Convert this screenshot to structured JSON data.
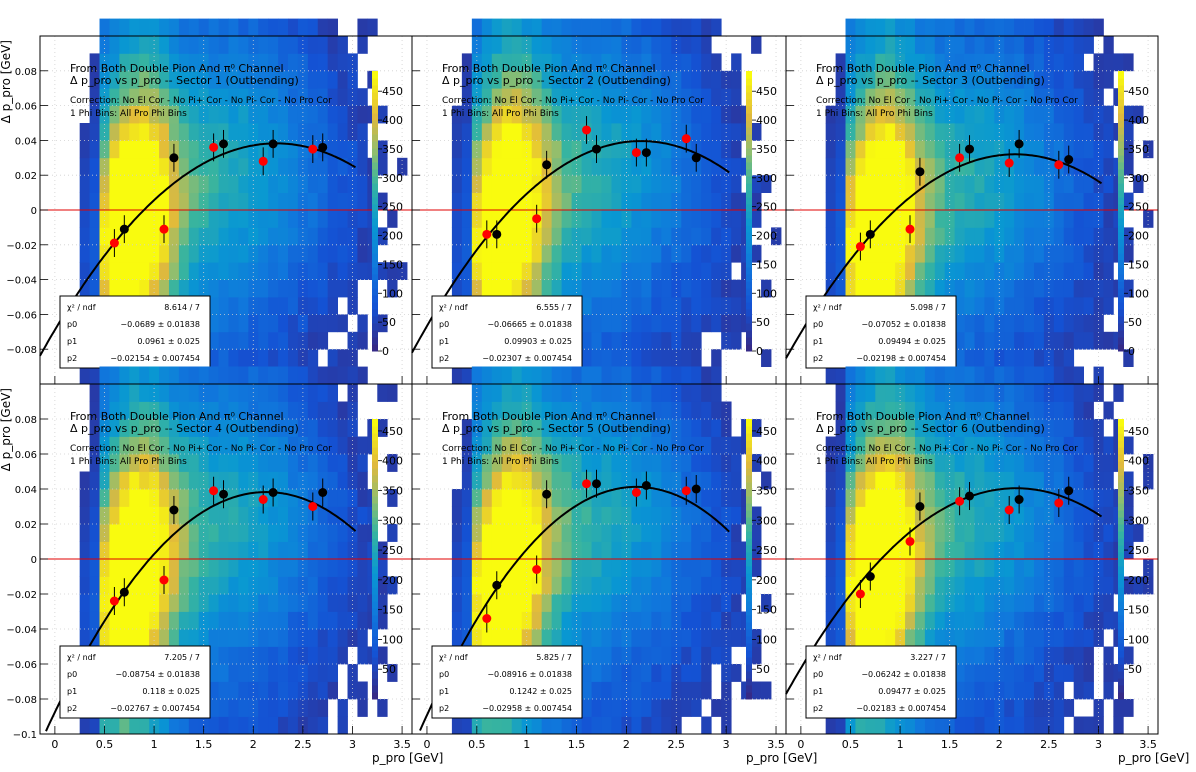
{
  "chart_data": [
    {
      "type": "scatter",
      "title_lines": [
        "From Both Double Pion And π⁰ Channel",
        "Δ p_pro vs p_pro -- Sector 1 (Outbending)",
        "Correction: No El Cor - No Pi+ Cor - No Pi- Cor - No Pro Cor",
        "1 Phi Bins: All Pro Phi Bins"
      ],
      "xlabel": "p_pro [GeV]",
      "ylabel": "Δ p_pro [GeV]",
      "fit_params": {
        "p0": -0.0689,
        "p1": 0.0961,
        "p2": -0.02154
      },
      "stats": [
        [
          "χ² / ndf",
          "8.614 / 7"
        ],
        [
          "p0",
          "−0.0689 ± 0.01838"
        ],
        [
          "p1",
          "0.0961 ± 0.025"
        ],
        [
          "p2",
          "−0.02154 ± 0.007454"
        ]
      ],
      "red_points": [
        [
          0.6,
          -0.019
        ],
        [
          1.1,
          -0.011
        ],
        [
          1.6,
          0.036
        ],
        [
          2.1,
          0.028
        ],
        [
          2.6,
          0.035
        ]
      ],
      "black_points": [
        [
          0.7,
          -0.011
        ],
        [
          1.2,
          0.03
        ],
        [
          1.7,
          0.038
        ],
        [
          2.2,
          0.038
        ],
        [
          2.7,
          0.036
        ]
      ],
      "colorbar_ticks": [
        0,
        50,
        100,
        150,
        200,
        250,
        300,
        350,
        400,
        450
      ],
      "colorbar_max": 485
    },
    {
      "type": "scatter",
      "title_lines": [
        "From Both Double Pion And π⁰ Channel",
        "Δ p_pro vs p_pro -- Sector 2 (Outbending)",
        "Correction: No El Cor - No Pi+ Cor - No Pi- Cor - No Pro Cor",
        "1 Phi Bins: All Pro Phi Bins"
      ],
      "xlabel": "p_pro [GeV]",
      "ylabel": "",
      "fit_params": {
        "p0": -0.06665,
        "p1": 0.09903,
        "p2": -0.02307
      },
      "stats": [
        [
          "χ² / ndf",
          "6.555 / 7"
        ],
        [
          "p0",
          "−0.06665 ± 0.01838"
        ],
        [
          "p1",
          "0.09903 ± 0.025"
        ],
        [
          "p2",
          "−0.02307 ± 0.007454"
        ]
      ],
      "red_points": [
        [
          0.6,
          -0.014
        ],
        [
          1.1,
          -0.005
        ],
        [
          1.6,
          0.046
        ],
        [
          2.1,
          0.033
        ],
        [
          2.6,
          0.041
        ]
      ],
      "black_points": [
        [
          0.7,
          -0.014
        ],
        [
          1.2,
          0.026
        ],
        [
          1.7,
          0.035
        ],
        [
          2.2,
          0.033
        ],
        [
          2.7,
          0.03
        ]
      ],
      "colorbar_ticks": [
        0,
        50,
        100,
        150,
        200,
        250,
        300,
        350,
        400,
        450
      ],
      "colorbar_max": 485
    },
    {
      "type": "scatter",
      "title_lines": [
        "From Both Double Pion And π⁰ Channel",
        "Δ p_pro vs p_pro -- Sector 3 (Outbending)",
        "Correction: No El Cor - No Pi+ Cor - No Pi- Cor - No Pro Cor",
        "1 Phi Bins: All Pro Phi Bins"
      ],
      "xlabel": "p_pro [GeV]",
      "ylabel": "",
      "fit_params": {
        "p0": -0.07052,
        "p1": 0.09494,
        "p2": -0.02198
      },
      "stats": [
        [
          "χ² / ndf",
          "5.098 / 7"
        ],
        [
          "p0",
          "−0.07052 ± 0.01838"
        ],
        [
          "p1",
          "0.09494 ± 0.025"
        ],
        [
          "p2",
          "−0.02198 ± 0.007454"
        ]
      ],
      "red_points": [
        [
          0.6,
          -0.021
        ],
        [
          1.1,
          -0.011
        ],
        [
          1.6,
          0.03
        ],
        [
          2.1,
          0.027
        ],
        [
          2.6,
          0.026
        ]
      ],
      "black_points": [
        [
          0.7,
          -0.014
        ],
        [
          1.2,
          0.022
        ],
        [
          1.7,
          0.035
        ],
        [
          2.2,
          0.038
        ],
        [
          2.7,
          0.029
        ]
      ],
      "colorbar_ticks": [
        0,
        50,
        100,
        150,
        200,
        250,
        300,
        350,
        400,
        450
      ],
      "colorbar_max": 485
    },
    {
      "type": "scatter",
      "title_lines": [
        "From Both Double Pion And π⁰ Channel",
        "Δ p_pro vs p_pro -- Sector 4 (Outbending)",
        "Correction: No El Cor - No Pi+ Cor - No Pi- Cor - No Pro Cor",
        "1 Phi Bins: All Pro Phi Bins"
      ],
      "xlabel": "p_pro [GeV]",
      "ylabel": "Δ p_pro [GeV]",
      "fit_params": {
        "p0": -0.08754,
        "p1": 0.118,
        "p2": -0.02767
      },
      "stats": [
        [
          "χ² / ndf",
          "7.205 / 7"
        ],
        [
          "p0",
          "−0.08754 ± 0.01838"
        ],
        [
          "p1",
          "0.118 ± 0.025"
        ],
        [
          "p2",
          "−0.02767 ± 0.007454"
        ]
      ],
      "red_points": [
        [
          0.6,
          -0.024
        ],
        [
          1.1,
          -0.012
        ],
        [
          1.6,
          0.039
        ],
        [
          2.1,
          0.034
        ],
        [
          2.6,
          0.03
        ]
      ],
      "black_points": [
        [
          0.7,
          -0.019
        ],
        [
          1.2,
          0.028
        ],
        [
          1.7,
          0.037
        ],
        [
          2.2,
          0.038
        ],
        [
          2.7,
          0.038
        ]
      ],
      "colorbar_ticks": [
        50,
        100,
        150,
        200,
        250,
        300,
        350,
        400,
        450
      ],
      "colorbar_max": 470
    },
    {
      "type": "scatter",
      "title_lines": [
        "From Both Double Pion And π⁰ Channel",
        "Δ p_pro vs p_pro -- Sector 5 (Outbending)",
        "Correction: No El Cor - No Pi+ Cor - No Pi- Cor - No Pro Cor",
        "1 Phi Bins: All Pro Phi Bins"
      ],
      "xlabel": "p_pro [GeV]",
      "ylabel": "",
      "fit_params": {
        "p0": -0.08916,
        "p1": 0.1242,
        "p2": -0.02958
      },
      "stats": [
        [
          "χ² / ndf",
          "5.825 / 7"
        ],
        [
          "p0",
          "−0.08916 ± 0.01838"
        ],
        [
          "p1",
          "0.1242 ± 0.025"
        ],
        [
          "p2",
          "−0.02958 ± 0.007454"
        ]
      ],
      "red_points": [
        [
          0.6,
          -0.034
        ],
        [
          1.1,
          -0.006
        ],
        [
          1.6,
          0.043
        ],
        [
          2.1,
          0.038
        ],
        [
          2.6,
          0.039
        ]
      ],
      "black_points": [
        [
          0.7,
          -0.015
        ],
        [
          1.2,
          0.037
        ],
        [
          1.7,
          0.043
        ],
        [
          2.2,
          0.042
        ],
        [
          2.7,
          0.04
        ]
      ],
      "colorbar_ticks": [
        50,
        100,
        150,
        200,
        250,
        300,
        350,
        400,
        450
      ],
      "colorbar_max": 470
    },
    {
      "type": "scatter",
      "title_lines": [
        "From Both Double Pion And π⁰ Channel",
        "Δ p_pro vs p_pro -- Sector 6 (Outbending)",
        "Correction: No El Cor - No Pi+ Cor - No Pi- Cor - No Pro Cor",
        "1 Phi Bins: All Pro Phi Bins"
      ],
      "xlabel": "p_pro [GeV]",
      "ylabel": "",
      "fit_params": {
        "p0": -0.06242,
        "p1": 0.09477,
        "p2": -0.02183
      },
      "stats": [
        [
          "χ² / ndf",
          "3.227 / 7"
        ],
        [
          "p0",
          "−0.06242 ± 0.01838"
        ],
        [
          "p1",
          "0.09477 ± 0.025"
        ],
        [
          "p2",
          "−0.02183 ± 0.007454"
        ]
      ],
      "red_points": [
        [
          0.6,
          -0.02
        ],
        [
          1.1,
          0.01
        ],
        [
          1.6,
          0.033
        ],
        [
          2.1,
          0.028
        ],
        [
          2.6,
          0.032
        ]
      ],
      "black_points": [
        [
          0.7,
          -0.01
        ],
        [
          1.2,
          0.03
        ],
        [
          1.7,
          0.036
        ],
        [
          2.2,
          0.034
        ],
        [
          2.7,
          0.039
        ]
      ],
      "colorbar_ticks": [
        50,
        100,
        150,
        200,
        250,
        300,
        350,
        400,
        450
      ],
      "colorbar_max": 470
    }
  ],
  "axis": {
    "x_ticks": [
      0,
      0.5,
      1,
      1.5,
      2,
      2.5,
      3,
      3.5
    ],
    "x_tick_labels": [
      "0",
      "0.5",
      "1",
      "1.5",
      "2",
      "2.5",
      "3",
      "3.5"
    ],
    "y_ticks": [
      -0.08,
      -0.06,
      -0.04,
      -0.02,
      0,
      0.02,
      0.04,
      0.06,
      0.08
    ],
    "y_tick_labels": [
      "−0.08",
      "−0.06",
      "−0.04",
      "−0.02",
      "0",
      "0.02",
      "0.04",
      "0.06",
      "0.08"
    ],
    "y_edge_labels_top": "0.1",
    "y_edge_label_bottom": "−0.1",
    "xlim": [
      -0.15,
      3.6
    ],
    "ylim": [
      -0.1,
      0.1
    ]
  },
  "colors": {
    "red_points": "#ff0000",
    "black_points": "#000000",
    "zero_line": "#e00000",
    "fit_curve": "#000000",
    "heatmap_low": "#3b4fb8",
    "heatmap_high": "#f8f810"
  }
}
